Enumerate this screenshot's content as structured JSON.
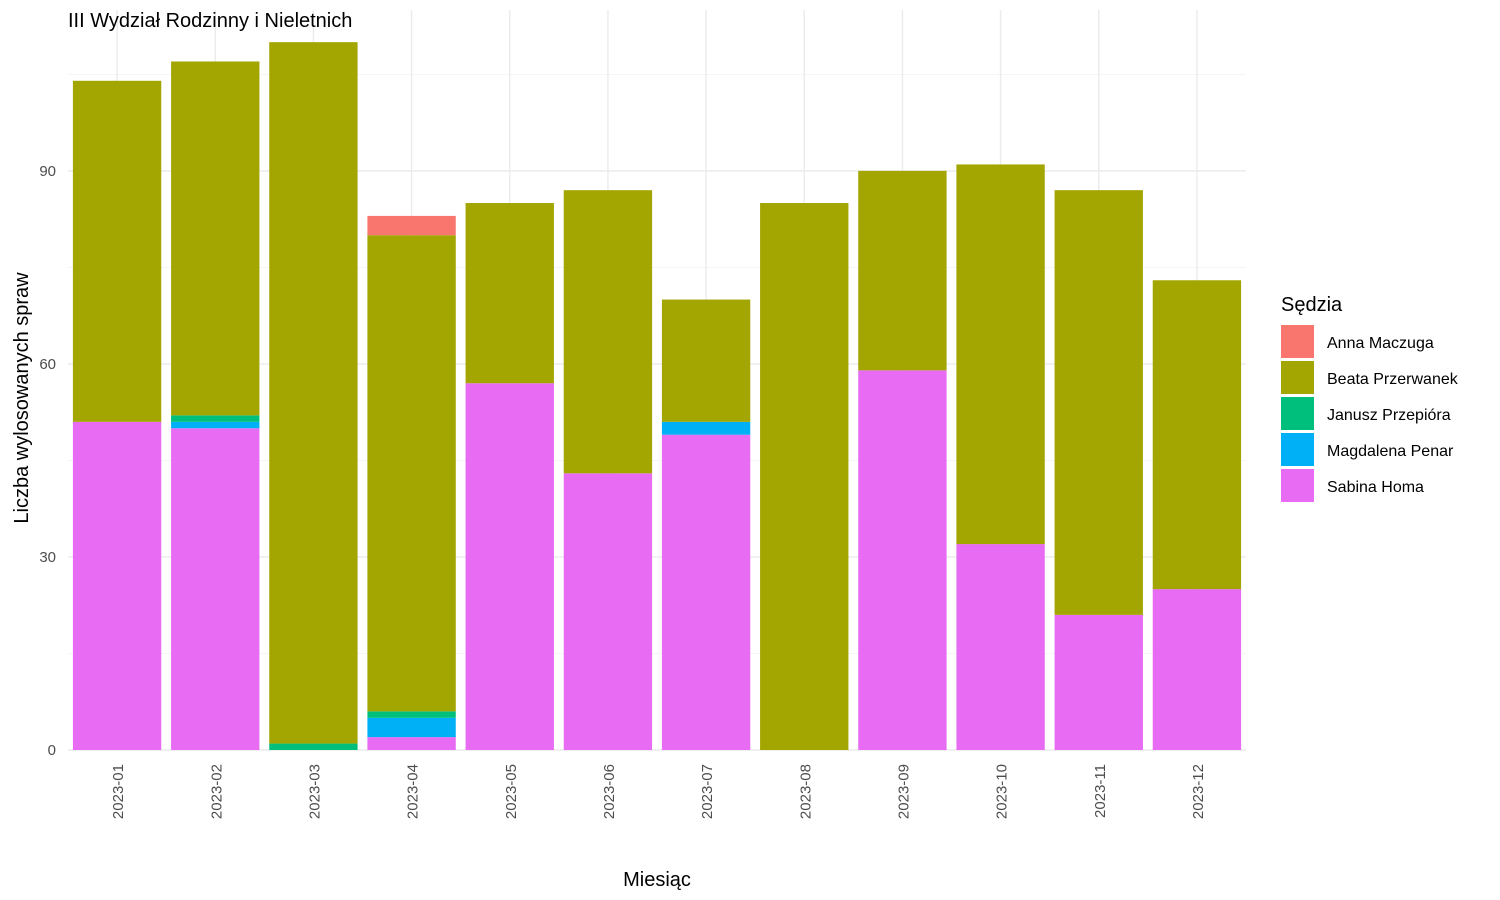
{
  "chart_data": {
    "type": "bar",
    "stacked": true,
    "title": "III Wydział Rodzinny i Nieletnich",
    "xlabel": "Miesiąc",
    "ylabel": "Liczba wylosowanych spraw",
    "ylim": [
      0,
      115
    ],
    "yticks": [
      0,
      30,
      60,
      90
    ],
    "grid": true,
    "legend_title": "Sędzia",
    "legend_position": "right",
    "categories": [
      "2023-01",
      "2023-02",
      "2023-03",
      "2023-04",
      "2023-05",
      "2023-06",
      "2023-07",
      "2023-08",
      "2023-09",
      "2023-10",
      "2023-11",
      "2023-12"
    ],
    "series": [
      {
        "name": "Anna Maczuga",
        "color": "#F8766D",
        "values": [
          0,
          0,
          0,
          3,
          0,
          0,
          0,
          0,
          0,
          0,
          0,
          0
        ]
      },
      {
        "name": "Beata Przerwanek",
        "color": "#A3A500",
        "values": [
          53,
          55,
          109,
          74,
          28,
          44,
          19,
          85,
          31,
          59,
          66,
          48
        ]
      },
      {
        "name": "Janusz Przepióra",
        "color": "#00BF7D",
        "values": [
          0,
          1,
          1,
          1,
          0,
          0,
          0,
          0,
          0,
          0,
          0,
          0
        ]
      },
      {
        "name": "Magdalena Penar",
        "color": "#00B0F6",
        "values": [
          0,
          1,
          0,
          3,
          0,
          0,
          2,
          0,
          0,
          0,
          0,
          0
        ]
      },
      {
        "name": "Sabina Homa",
        "color": "#E76BF3",
        "values": [
          51,
          50,
          0,
          2,
          57,
          43,
          49,
          0,
          59,
          32,
          21,
          25
        ]
      }
    ]
  }
}
